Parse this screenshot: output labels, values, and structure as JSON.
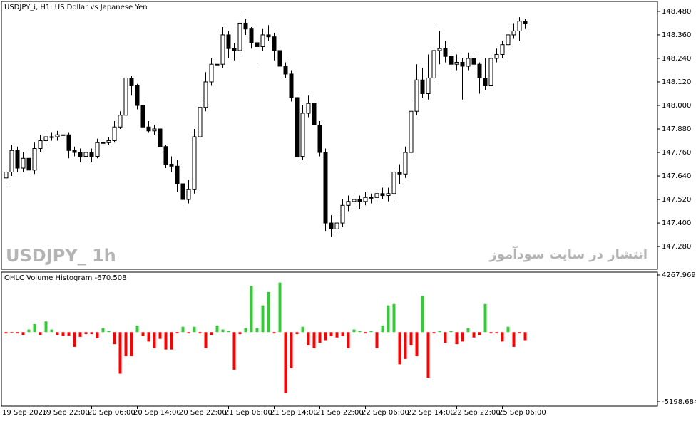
{
  "chart_data": [
    {
      "type": "candlestick",
      "title": "USDJPY_i, H1:  US Dollar vs Japanese Yen",
      "watermark": "USDJPY_  1h",
      "annotation": "انتشار در سایت سودآموز",
      "up_color": "#ffffff",
      "down_color": "#000000",
      "ylim": [
        147.164,
        148.527
      ],
      "yticks": [
        {
          "value": 148.48,
          "label": "148.480"
        },
        {
          "value": 148.36,
          "label": "148.360"
        },
        {
          "value": 148.24,
          "label": "148.240"
        },
        {
          "value": 148.12,
          "label": "148.120"
        },
        {
          "value": 148.0,
          "label": "148.000"
        },
        {
          "value": 147.88,
          "label": "147.880"
        },
        {
          "value": 147.76,
          "label": "147.760"
        },
        {
          "value": 147.64,
          "label": "147.640"
        },
        {
          "value": 147.52,
          "label": "147.520"
        },
        {
          "value": 147.4,
          "label": "147.400"
        },
        {
          "value": 147.28,
          "label": "147.280"
        }
      ],
      "open": [
        147.63,
        147.66,
        147.77,
        147.68,
        147.73,
        147.67,
        147.78,
        147.82,
        147.84,
        147.84,
        147.85,
        147.85,
        147.77,
        147.76,
        147.74,
        147.76,
        147.74,
        147.81,
        147.81,
        147.82,
        147.89,
        147.95,
        148.14,
        148.1,
        148.0,
        147.89,
        147.87,
        147.88,
        147.79,
        147.7,
        147.69,
        147.6,
        147.52,
        147.57,
        147.84,
        147.99,
        148.12,
        148.21,
        148.21,
        148.36,
        148.29,
        148.28,
        148.42,
        148.39,
        148.32,
        148.3,
        148.36,
        148.35,
        148.28,
        148.2,
        148.16,
        148.04,
        147.74,
        147.96,
        148.01,
        147.9,
        147.76,
        147.4,
        147.37,
        147.4,
        147.49,
        147.51,
        147.52,
        147.51,
        147.53,
        147.53,
        147.55,
        147.54,
        147.55,
        147.66,
        147.65,
        147.76,
        147.97,
        148.13,
        148.06,
        148.14,
        148.28,
        148.29,
        148.25,
        148.21,
        148.22,
        148.2,
        148.24,
        148.21,
        148.14,
        148.1,
        148.24,
        148.26,
        148.31,
        148.36,
        148.38,
        148.43
      ],
      "high": [
        147.69,
        147.8,
        147.79,
        147.76,
        147.75,
        147.81,
        147.85,
        147.87,
        147.86,
        147.87,
        147.86,
        147.86,
        147.79,
        147.78,
        147.78,
        147.78,
        147.83,
        147.83,
        147.84,
        147.92,
        147.97,
        148.16,
        148.15,
        148.11,
        148.02,
        147.92,
        147.9,
        147.89,
        147.8,
        147.74,
        147.72,
        147.62,
        147.62,
        147.88,
        148.04,
        148.17,
        148.24,
        148.38,
        148.4,
        148.38,
        148.32,
        148.46,
        148.44,
        148.4,
        148.34,
        148.39,
        148.41,
        148.37,
        148.3,
        148.22,
        148.18,
        148.06,
        148.0,
        148.05,
        148.02,
        147.92,
        147.78,
        147.44,
        147.46,
        147.52,
        147.54,
        147.55,
        147.54,
        147.56,
        147.55,
        147.57,
        147.58,
        147.58,
        147.68,
        147.7,
        147.79,
        148.02,
        148.21,
        148.19,
        148.26,
        148.41,
        148.38,
        148.33,
        148.28,
        148.26,
        148.24,
        148.27,
        148.25,
        148.22,
        148.24,
        148.26,
        148.29,
        148.33,
        148.4,
        148.42,
        148.45,
        148.44
      ],
      "low": [
        147.6,
        147.64,
        147.66,
        147.66,
        147.65,
        147.65,
        147.76,
        147.8,
        147.82,
        147.82,
        147.83,
        147.73,
        147.74,
        147.71,
        147.72,
        147.71,
        147.73,
        147.79,
        147.8,
        147.81,
        147.88,
        147.94,
        148.05,
        147.98,
        147.87,
        147.86,
        147.85,
        147.76,
        147.68,
        147.66,
        147.56,
        147.49,
        147.5,
        147.55,
        147.82,
        147.97,
        148.1,
        148.19,
        148.19,
        148.24,
        148.23,
        148.27,
        148.36,
        148.29,
        148.21,
        148.28,
        148.33,
        148.23,
        148.14,
        148.14,
        148.02,
        147.72,
        147.72,
        147.94,
        147.84,
        147.74,
        147.36,
        147.33,
        147.35,
        147.38,
        147.46,
        147.48,
        147.47,
        147.49,
        147.5,
        147.51,
        147.52,
        147.51,
        147.51,
        147.6,
        147.63,
        147.74,
        147.95,
        148.04,
        148.03,
        148.12,
        148.21,
        148.22,
        148.17,
        148.18,
        148.03,
        148.18,
        148.17,
        148.06,
        148.08,
        148.09,
        148.22,
        148.24,
        148.28,
        148.34,
        148.33,
        148.39
      ],
      "close": [
        147.66,
        147.77,
        147.68,
        147.73,
        147.67,
        147.78,
        147.82,
        147.84,
        147.84,
        147.85,
        147.85,
        147.77,
        147.76,
        147.74,
        147.76,
        147.74,
        147.81,
        147.81,
        147.82,
        147.89,
        147.95,
        148.14,
        148.1,
        148.0,
        147.89,
        147.87,
        147.88,
        147.79,
        147.7,
        147.69,
        147.6,
        147.52,
        147.57,
        147.84,
        147.99,
        148.12,
        148.21,
        148.21,
        148.36,
        148.29,
        148.28,
        148.42,
        148.39,
        148.32,
        148.3,
        148.36,
        148.35,
        148.28,
        148.2,
        148.16,
        148.04,
        147.74,
        147.96,
        148.01,
        147.9,
        147.76,
        147.4,
        147.37,
        147.4,
        147.49,
        147.51,
        147.52,
        147.51,
        147.53,
        147.53,
        147.55,
        147.54,
        147.55,
        147.66,
        147.65,
        147.76,
        147.97,
        148.13,
        148.06,
        148.14,
        148.28,
        148.29,
        148.25,
        148.21,
        148.22,
        148.2,
        148.24,
        148.21,
        148.14,
        148.1,
        148.24,
        148.26,
        148.31,
        148.36,
        148.38,
        148.43,
        148.42
      ]
    },
    {
      "type": "bar",
      "title": "OHLC Volume Histogram -670.508",
      "positive_color": "#32cd32",
      "negative_color": "#ff0000",
      "ylim": [
        -5198.684,
        4267.969
      ],
      "yticks": [
        4267.969,
        -5198.684
      ],
      "categories": [
        "19 Sep 2023",
        null,
        null,
        null,
        null,
        null,
        null,
        "19 Sep 22:00",
        null,
        null,
        null,
        null,
        null,
        null,
        null,
        "20 Sep 06:00",
        null,
        null,
        null,
        null,
        null,
        null,
        null,
        "20 Sep 14:00",
        null,
        null,
        null,
        null,
        null,
        null,
        null,
        "20 Sep 22:00",
        null,
        null,
        null,
        null,
        null,
        null,
        null,
        "21 Sep 06:00",
        null,
        null,
        null,
        null,
        null,
        null,
        null,
        "21 Sep 14:00",
        null,
        null,
        null,
        null,
        null,
        null,
        null,
        "21 Sep 22:00",
        null,
        null,
        null,
        null,
        null,
        null,
        null,
        "22 Sep 06:00",
        null,
        null,
        null,
        null,
        null,
        null,
        null,
        "22 Sep 14:00",
        null,
        null,
        null,
        null,
        null,
        null,
        null,
        "22 Sep 22:00",
        null,
        null,
        null,
        null,
        null,
        null,
        null,
        "25 Sep 06:00",
        null,
        null,
        null,
        null
      ],
      "values": [
        -100,
        -50,
        -100,
        -200,
        200,
        600,
        -200,
        800,
        200,
        -200,
        -300,
        -250,
        -1100,
        -350,
        -150,
        -150,
        -450,
        300,
        100,
        -900,
        -3100,
        -1800,
        -1800,
        500,
        -300,
        -700,
        -1200,
        -500,
        -1300,
        -1300,
        -100,
        400,
        -100,
        400,
        -100,
        -1200,
        -200,
        500,
        200,
        100,
        -2800,
        -150,
        300,
        3450,
        300,
        2000,
        3000,
        -100,
        3700,
        -4560,
        -2700,
        -150,
        400,
        -1000,
        -1200,
        -800,
        -600,
        -300,
        -400,
        -300,
        -1200,
        200,
        100,
        -100,
        100,
        -1200,
        500,
        2000,
        2100,
        -2400,
        -2000,
        -1000,
        -1800,
        2700,
        -3400,
        -100,
        100,
        -800,
        100,
        -900,
        -700,
        300,
        -400,
        -200,
        2100,
        -100,
        -100,
        -700,
        400,
        -1100,
        -100,
        -600
      ]
    }
  ]
}
